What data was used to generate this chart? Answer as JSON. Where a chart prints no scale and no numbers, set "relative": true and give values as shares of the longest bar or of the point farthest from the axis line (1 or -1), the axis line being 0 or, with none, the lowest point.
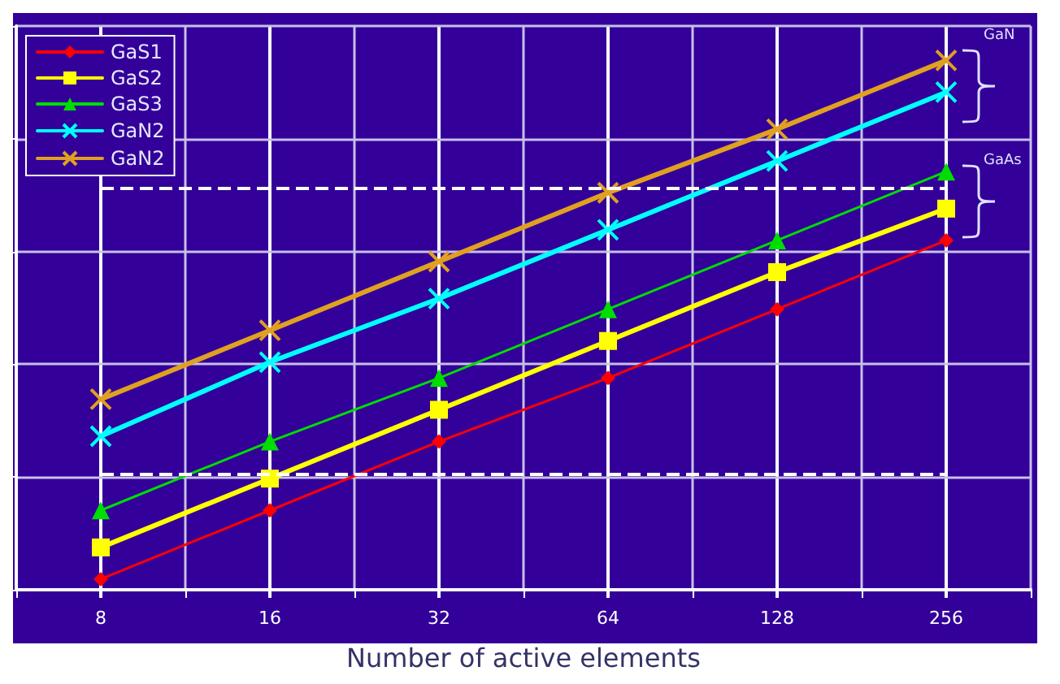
{
  "chart_data": {
    "type": "line",
    "xlabel": "Number of active elements",
    "categories": [
      "8",
      "16",
      "32",
      "64",
      "128",
      "256"
    ],
    "relative": true,
    "grid": true,
    "legend": "top left",
    "line_style": "solid",
    "series": [
      {
        "name": "GaS1",
        "color": "#ff0000",
        "marker": "diamond",
        "values": [
          0.02,
          0.15,
          0.28,
          0.4,
          0.53,
          0.66
        ]
      },
      {
        "name": "GaS2",
        "color": "#ffff00",
        "marker": "square",
        "values": [
          0.08,
          0.21,
          0.34,
          0.47,
          0.6,
          0.72
        ]
      },
      {
        "name": "GaS3",
        "color": "#00dd00",
        "marker": "triangle",
        "values": [
          0.15,
          0.28,
          0.4,
          0.53,
          0.66,
          0.79
        ]
      },
      {
        "name": "GaN2",
        "color": "#00ffff",
        "marker": "cross",
        "values": [
          0.29,
          0.43,
          0.55,
          0.68,
          0.81,
          0.94
        ]
      },
      {
        "name": "GaN2",
        "color": "#e0a020",
        "marker": "cross",
        "values": [
          0.36,
          0.49,
          0.62,
          0.75,
          0.87,
          1
        ]
      }
    ],
    "ref_lines": [
      {
        "axis": "y",
        "value": 0.22,
        "color": "#ffffff",
        "line_style": "dashed"
      },
      {
        "axis": "y",
        "value": 0.76,
        "color": "#ffffff",
        "line_style": "dashed"
      }
    ],
    "annotations": [
      "GaN",
      "GaAs"
    ]
  }
}
